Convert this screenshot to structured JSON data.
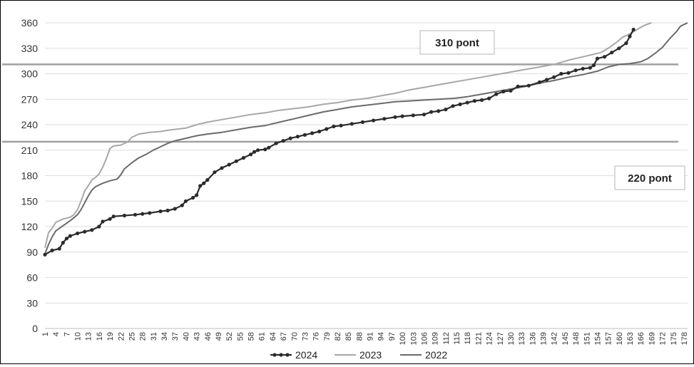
{
  "chart_data": {
    "type": "line",
    "title": "",
    "xlabel": "",
    "ylabel": "",
    "ylim": [
      0,
      360
    ],
    "yticks": [
      0,
      30,
      60,
      90,
      120,
      150,
      180,
      210,
      240,
      270,
      300,
      330,
      360
    ],
    "xlim": [
      1,
      179
    ],
    "xticks": [
      1,
      4,
      7,
      10,
      13,
      16,
      19,
      22,
      25,
      28,
      31,
      34,
      37,
      40,
      43,
      46,
      49,
      52,
      55,
      58,
      61,
      64,
      67,
      70,
      73,
      76,
      79,
      82,
      85,
      88,
      91,
      94,
      97,
      100,
      103,
      106,
      109,
      112,
      115,
      118,
      121,
      124,
      127,
      130,
      133,
      136,
      139,
      142,
      145,
      148,
      151,
      154,
      157,
      160,
      163,
      166,
      169,
      172,
      175,
      178
    ],
    "grid": "horizontal",
    "legend_position": "bottom",
    "series": [
      {
        "name": "2024",
        "color": "#2b2b2b",
        "marker": "circle",
        "points": [
          [
            1,
            87
          ],
          [
            3,
            92
          ],
          [
            5,
            94
          ],
          [
            6,
            101
          ],
          [
            7,
            106
          ],
          [
            8,
            109
          ],
          [
            10,
            112
          ],
          [
            12,
            114
          ],
          [
            14,
            116
          ],
          [
            16,
            120
          ],
          [
            17,
            126
          ],
          [
            19,
            129
          ],
          [
            20,
            132
          ],
          [
            23,
            133
          ],
          [
            26,
            134
          ],
          [
            28,
            135
          ],
          [
            30,
            136
          ],
          [
            33,
            138
          ],
          [
            35,
            139
          ],
          [
            37,
            141
          ],
          [
            39,
            145
          ],
          [
            40,
            150
          ],
          [
            42,
            154
          ],
          [
            43,
            157
          ],
          [
            44,
            168
          ],
          [
            45,
            171
          ],
          [
            46,
            175
          ],
          [
            48,
            184
          ],
          [
            50,
            189
          ],
          [
            52,
            193
          ],
          [
            54,
            197
          ],
          [
            56,
            201
          ],
          [
            58,
            205
          ],
          [
            59,
            208
          ],
          [
            60,
            210
          ],
          [
            62,
            211
          ],
          [
            63,
            213
          ],
          [
            65,
            218
          ],
          [
            67,
            221
          ],
          [
            69,
            224
          ],
          [
            71,
            226
          ],
          [
            73,
            228
          ],
          [
            75,
            230
          ],
          [
            77,
            232
          ],
          [
            79,
            235
          ],
          [
            81,
            238
          ],
          [
            83,
            239
          ],
          [
            86,
            241
          ],
          [
            89,
            243
          ],
          [
            92,
            245
          ],
          [
            95,
            247
          ],
          [
            98,
            249
          ],
          [
            100,
            250
          ],
          [
            103,
            251
          ],
          [
            106,
            252
          ],
          [
            108,
            255
          ],
          [
            110,
            256
          ],
          [
            112,
            258
          ],
          [
            114,
            262
          ],
          [
            116,
            264
          ],
          [
            118,
            266
          ],
          [
            120,
            268
          ],
          [
            122,
            269
          ],
          [
            124,
            271
          ],
          [
            126,
            276
          ],
          [
            128,
            279
          ],
          [
            130,
            280
          ],
          [
            132,
            285
          ],
          [
            135,
            286
          ],
          [
            138,
            290
          ],
          [
            140,
            293
          ],
          [
            142,
            296
          ],
          [
            144,
            300
          ],
          [
            146,
            301
          ],
          [
            148,
            304
          ],
          [
            150,
            306
          ],
          [
            152,
            307
          ],
          [
            153,
            310
          ],
          [
            154,
            318
          ],
          [
            156,
            320
          ],
          [
            158,
            325
          ],
          [
            160,
            330
          ],
          [
            162,
            336
          ],
          [
            163,
            344
          ],
          [
            164,
            352
          ]
        ]
      },
      {
        "name": "2023",
        "color": "#a7a7a7",
        "marker": "none",
        "points": [
          [
            1,
            95
          ],
          [
            2,
            113
          ],
          [
            3,
            118
          ],
          [
            4,
            125
          ],
          [
            6,
            129
          ],
          [
            8,
            131
          ],
          [
            9,
            134
          ],
          [
            10,
            140
          ],
          [
            11,
            150
          ],
          [
            12,
            162
          ],
          [
            13,
            168
          ],
          [
            14,
            175
          ],
          [
            15,
            178
          ],
          [
            16,
            182
          ],
          [
            17,
            190
          ],
          [
            18,
            200
          ],
          [
            19,
            212
          ],
          [
            20,
            215
          ],
          [
            22,
            216
          ],
          [
            24,
            220
          ],
          [
            25,
            225
          ],
          [
            27,
            229
          ],
          [
            30,
            231
          ],
          [
            33,
            232
          ],
          [
            36,
            234
          ],
          [
            40,
            236
          ],
          [
            43,
            240
          ],
          [
            46,
            243
          ],
          [
            50,
            246
          ],
          [
            54,
            249
          ],
          [
            58,
            252
          ],
          [
            62,
            254
          ],
          [
            66,
            257
          ],
          [
            70,
            259
          ],
          [
            74,
            261
          ],
          [
            78,
            264
          ],
          [
            82,
            266
          ],
          [
            86,
            269
          ],
          [
            90,
            271
          ],
          [
            94,
            274
          ],
          [
            98,
            277
          ],
          [
            102,
            281
          ],
          [
            106,
            284
          ],
          [
            110,
            287
          ],
          [
            114,
            290
          ],
          [
            118,
            293
          ],
          [
            122,
            296
          ],
          [
            126,
            299
          ],
          [
            130,
            302
          ],
          [
            134,
            305
          ],
          [
            138,
            308
          ],
          [
            142,
            311
          ],
          [
            146,
            316
          ],
          [
            150,
            320
          ],
          [
            153,
            323
          ],
          [
            155,
            325
          ],
          [
            157,
            330
          ],
          [
            159,
            336
          ],
          [
            161,
            343
          ],
          [
            163,
            347
          ],
          [
            165,
            352
          ],
          [
            167,
            357
          ],
          [
            169,
            360
          ]
        ]
      },
      {
        "name": "2022",
        "color": "#6a6a6a",
        "marker": "none",
        "points": [
          [
            1,
            88
          ],
          [
            2,
            99
          ],
          [
            3,
            108
          ],
          [
            4,
            115
          ],
          [
            6,
            121
          ],
          [
            8,
            127
          ],
          [
            10,
            134
          ],
          [
            11,
            140
          ],
          [
            12,
            148
          ],
          [
            13,
            156
          ],
          [
            14,
            163
          ],
          [
            15,
            167
          ],
          [
            17,
            171
          ],
          [
            19,
            174
          ],
          [
            21,
            176
          ],
          [
            22,
            181
          ],
          [
            23,
            188
          ],
          [
            25,
            195
          ],
          [
            27,
            201
          ],
          [
            29,
            205
          ],
          [
            31,
            210
          ],
          [
            33,
            214
          ],
          [
            35,
            218
          ],
          [
            37,
            221
          ],
          [
            40,
            224
          ],
          [
            43,
            227
          ],
          [
            46,
            229
          ],
          [
            50,
            231
          ],
          [
            54,
            234
          ],
          [
            58,
            237
          ],
          [
            62,
            239
          ],
          [
            66,
            243
          ],
          [
            70,
            247
          ],
          [
            74,
            251
          ],
          [
            78,
            255
          ],
          [
            82,
            258
          ],
          [
            86,
            261
          ],
          [
            90,
            263
          ],
          [
            94,
            265
          ],
          [
            98,
            267
          ],
          [
            102,
            268
          ],
          [
            106,
            269
          ],
          [
            110,
            270
          ],
          [
            114,
            271
          ],
          [
            118,
            273
          ],
          [
            122,
            276
          ],
          [
            126,
            279
          ],
          [
            130,
            282
          ],
          [
            134,
            285
          ],
          [
            138,
            289
          ],
          [
            142,
            292
          ],
          [
            146,
            296
          ],
          [
            150,
            299
          ],
          [
            154,
            303
          ],
          [
            157,
            308
          ],
          [
            160,
            311
          ],
          [
            163,
            312
          ],
          [
            166,
            314
          ],
          [
            168,
            318
          ],
          [
            170,
            324
          ],
          [
            172,
            331
          ],
          [
            174,
            341
          ],
          [
            176,
            350
          ],
          [
            177,
            356
          ],
          [
            179,
            360
          ]
        ]
      }
    ],
    "reference_lines": [
      {
        "y": 311,
        "color": "#a0a0a0"
      },
      {
        "y": 220,
        "color": "#a0a0a0"
      }
    ],
    "annotations": [
      {
        "text": "310 pont"
      },
      {
        "text": "220 pont"
      }
    ]
  }
}
